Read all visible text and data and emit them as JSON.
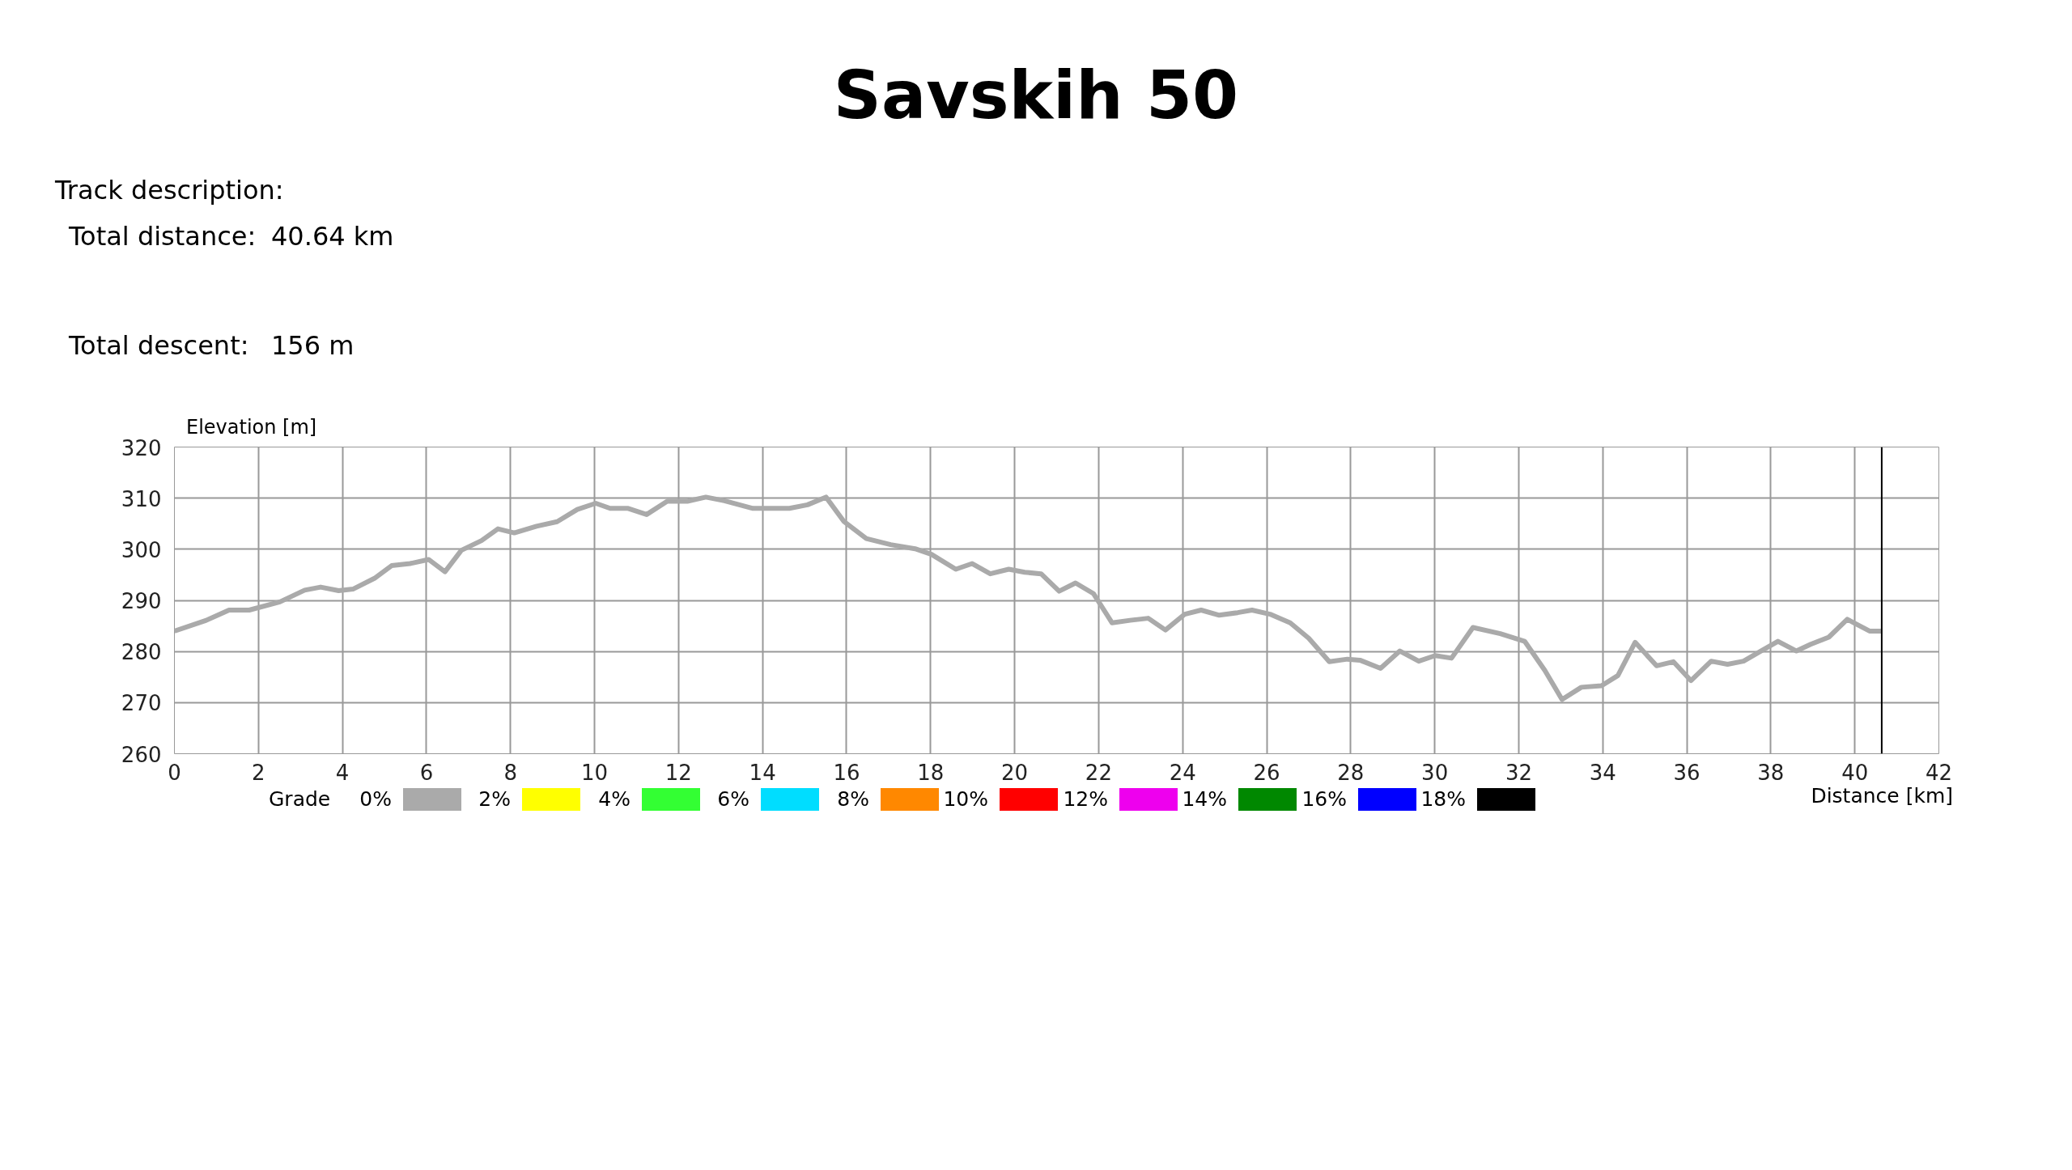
{
  "chart_data": {
    "type": "line",
    "title": "Savskih 50",
    "annotations": [
      "Track description:",
      "Total distance:",
      "40.64 km",
      "Total descent:",
      "156 m",
      "0%",
      "2%",
      "4%",
      "6%",
      "8%",
      "10%",
      "12%",
      "14%",
      "16%",
      "18%"
    ],
    "xlabel": "Distance [km]",
    "ylabel": "Elevation [m]",
    "x": [
      0,
      0.76,
      1.3,
      1.78,
      2.51,
      3.1,
      3.48,
      3.91,
      4.25,
      4.78,
      5.17,
      5.61,
      6.05,
      6.44,
      6.83,
      7.31,
      7.7,
      8.09,
      8.62,
      9.11,
      9.59,
      10.03,
      10.37,
      10.8,
      11.24,
      11.73,
      12.21,
      12.65,
      13.09,
      13.77,
      14.64,
      15.07,
      15.51,
      15.94,
      16.47,
      17.05,
      17.63,
      18.02,
      18.6,
      18.99,
      19.42,
      19.86,
      20.24,
      20.63,
      21.06,
      21.45,
      21.88,
      22.32,
      22.75,
      23.18,
      23.59,
      24.05,
      24.44,
      24.87,
      25.31,
      25.65,
      26.08,
      26.56,
      27.0,
      27.49,
      27.92,
      28.22,
      28.71,
      29.17,
      29.62,
      30.01,
      30.4,
      30.91,
      31.56,
      32.14,
      32.62,
      33.03,
      33.49,
      33.97,
      34.36,
      34.77,
      35.28,
      35.68,
      36.1,
      36.58,
      36.97,
      37.35,
      37.79,
      38.17,
      38.61,
      38.95,
      39.38,
      39.82,
      40.35,
      40.64
    ],
    "series": [
      {
        "color": "#aaaaaa",
        "values": [
          284.0,
          286.1,
          288.1,
          288.1,
          289.7,
          292.0,
          292.6,
          291.9,
          292.2,
          294.4,
          296.8,
          297.2,
          298.0,
          295.6,
          299.8,
          301.7,
          304.0,
          303.2,
          304.5,
          305.4,
          307.8,
          309.0,
          308.0,
          308.0,
          306.8,
          309.4,
          309.4,
          310.2,
          309.5,
          308.0,
          308.0,
          308.7,
          310.2,
          305.4,
          302.1,
          300.9,
          300.1,
          299.0,
          296.1,
          297.2,
          295.2,
          296.1,
          295.5,
          295.2,
          291.8,
          293.4,
          291.3,
          285.6,
          286.1,
          286.5,
          284.2,
          287.3,
          288.1,
          287.1,
          287.6,
          288.1,
          287.3,
          285.6,
          282.6,
          278.0,
          278.5,
          278.3,
          276.7,
          280.1,
          278.1,
          279.2,
          278.7,
          284.7,
          283.5,
          282.0,
          276.3,
          270.6,
          273.0,
          273.3,
          275.3,
          281.8,
          277.2,
          278.0,
          274.3,
          278.1,
          277.5,
          278.1,
          280.2,
          282.0,
          280.1,
          281.4,
          282.8,
          286.3,
          284.0,
          284.0
        ]
      }
    ],
    "xlim": [
      0,
      42
    ],
    "xticks": [
      0,
      2,
      4,
      6,
      8,
      10,
      12,
      14,
      16,
      18,
      20,
      22,
      24,
      26,
      28,
      30,
      32,
      34,
      36,
      38,
      40,
      42
    ],
    "ylim": [
      260,
      320
    ],
    "yticks": [
      260,
      270,
      280,
      290,
      300,
      310,
      320
    ],
    "grid": true,
    "marker": "none",
    "line_style": "solid",
    "ref_lines": [
      {
        "axis": "x",
        "value": 40.64,
        "color": "#000000"
      }
    ],
    "clabel": "Grade",
    "colors": [
      "#aaaaaa",
      "#ffff00",
      "#33ff33",
      "#00ddff",
      "#ff8800",
      "#ff0000",
      "#ee00ee",
      "#008800",
      "#0000ff",
      "#000000"
    ]
  }
}
